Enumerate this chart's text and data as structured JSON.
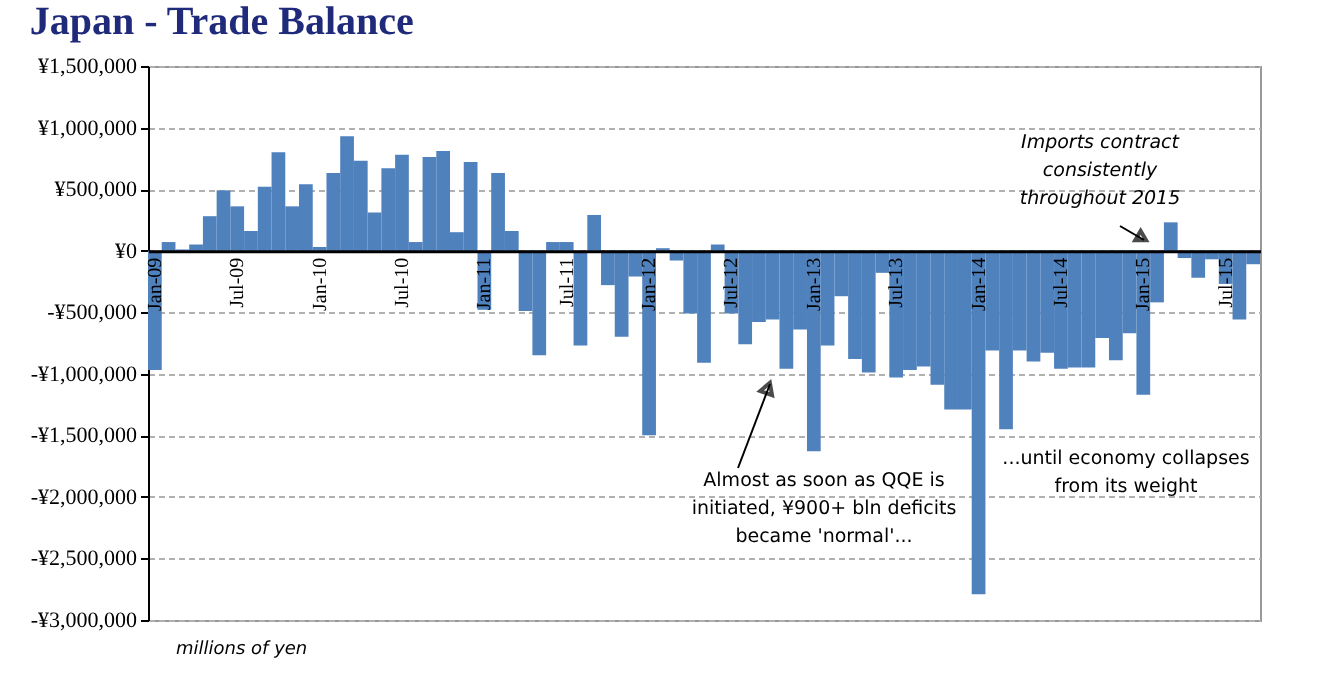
{
  "chart_data": {
    "type": "bar",
    "title": "Japan - Trade Balance",
    "categories": [
      "Jan-09",
      null,
      null,
      null,
      null,
      null,
      "Jul-09",
      null,
      null,
      null,
      null,
      null,
      "Jan-10",
      null,
      null,
      null,
      null,
      null,
      "Jul-10",
      null,
      null,
      null,
      null,
      null,
      "Jan-11",
      null,
      null,
      null,
      null,
      null,
      "Jul-11",
      null,
      null,
      null,
      null,
      null,
      "Jan-12",
      null,
      null,
      null,
      null,
      null,
      "Jul-12",
      null,
      null,
      null,
      null,
      null,
      "Jan-13",
      null,
      null,
      null,
      null,
      null,
      "Jul-13",
      null,
      null,
      null,
      null,
      null,
      "Jan-14",
      null,
      null,
      null,
      null,
      null,
      "Jul-14",
      null,
      null,
      null,
      null,
      null,
      "Jan-15",
      null,
      null,
      null,
      null,
      null,
      "Jul-15",
      null,
      null
    ],
    "values": [
      -970000,
      70000,
      10000,
      50000,
      280000,
      490000,
      360000,
      160000,
      520000,
      800000,
      360000,
      540000,
      30000,
      630000,
      930000,
      730000,
      310000,
      670000,
      780000,
      70000,
      760000,
      810000,
      150000,
      720000,
      -480000,
      630000,
      160000,
      -490000,
      -850000,
      70000,
      70000,
      -770000,
      290000,
      -280000,
      -700000,
      -210000,
      -1500000,
      20000,
      -80000,
      -510000,
      -910000,
      50000,
      -510000,
      -760000,
      -580000,
      -560000,
      -960000,
      -640000,
      -1630000,
      -770000,
      -370000,
      -880000,
      -990000,
      -180000,
      -1030000,
      -970000,
      -940000,
      -1090000,
      -1290000,
      -1290000,
      -2790000,
      -810000,
      -1450000,
      -810000,
      -900000,
      -830000,
      -960000,
      -950000,
      -950000,
      -710000,
      -890000,
      -670000,
      -1170000,
      -420000,
      230000,
      -60000,
      -220000,
      -70000,
      -270000,
      -560000,
      -110000
    ],
    "color": "#4f81bd",
    "ylim": [
      -3000000,
      1500000
    ],
    "yticks": [
      {
        "value": -3000000,
        "label": "-¥3,000,000"
      },
      {
        "value": -2500000,
        "label": "-¥2,500,000"
      },
      {
        "value": -2000000,
        "label": "-¥2,000,000"
      },
      {
        "value": -1500000,
        "label": "-¥1,500,000"
      },
      {
        "value": -1000000,
        "label": "-¥1,000,000"
      },
      {
        "value": -500000,
        "label": "-¥500,000"
      },
      {
        "value": 0,
        "label": "¥0"
      },
      {
        "value": 500000,
        "label": "¥500,000"
      },
      {
        "value": 1000000,
        "label": "¥1,000,000"
      },
      {
        "value": 1500000,
        "label": "¥1,500,000"
      }
    ],
    "grid": "y",
    "annotations": [
      "millions of yen",
      "Almost as soon as QQE is\ninitiated, ¥900+ bln deficits\nbecame 'normal'...",
      "...until economy collapses\nfrom its weight",
      "Imports contract\nconsistently\nthroughout 2015"
    ]
  }
}
